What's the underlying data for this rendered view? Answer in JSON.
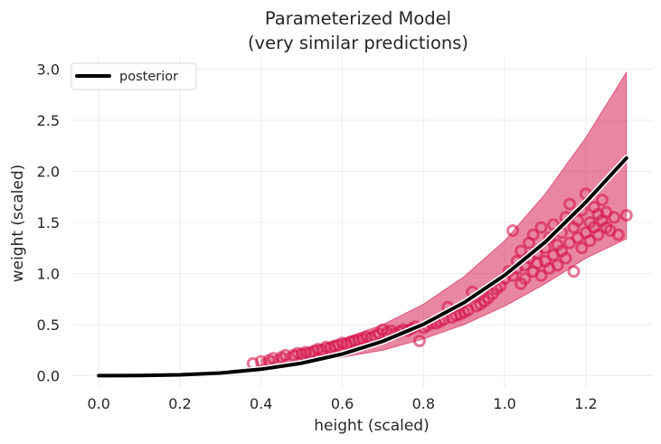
{
  "chart_data": {
    "type": "scatter",
    "title": "Parameterized Model",
    "subtitle": "(very similar predictions)",
    "xlabel": "height (scaled)",
    "ylabel": "weight (scaled)",
    "xlim": [
      -0.065,
      1.365
    ],
    "ylim": [
      -0.12,
      3.12
    ],
    "xticks": [
      0.0,
      0.2,
      0.4,
      0.6,
      0.8,
      1.0,
      1.2
    ],
    "xtick_labels": [
      "0.0",
      "0.2",
      "0.4",
      "0.6",
      "0.8",
      "1.0",
      "1.2"
    ],
    "yticks": [
      0.0,
      0.5,
      1.0,
      1.5,
      2.0,
      2.5,
      3.0
    ],
    "ytick_labels": [
      "0.0",
      "0.5",
      "1.0",
      "1.5",
      "2.0",
      "2.5",
      "3.0"
    ],
    "grid": true,
    "legend": {
      "placement": "top-left",
      "entries": [
        {
          "label": "posterior",
          "color": "#000000"
        }
      ]
    },
    "colors": {
      "band": "#d5184c",
      "band_opacity": 0.52,
      "points": "#d5184c",
      "line": "#000000"
    },
    "series": [
      {
        "name": "posterior",
        "kind": "line",
        "x": [
          0.0,
          0.1,
          0.2,
          0.3,
          0.4,
          0.5,
          0.6,
          0.7,
          0.8,
          0.9,
          1.0,
          1.1,
          1.2,
          1.3
        ],
        "y": [
          0.0,
          0.001,
          0.008,
          0.026,
          0.063,
          0.123,
          0.212,
          0.337,
          0.503,
          0.716,
          0.983,
          1.308,
          1.698,
          2.13
        ]
      },
      {
        "kind": "band",
        "x": [
          0.4,
          0.5,
          0.6,
          0.7,
          0.8,
          0.9,
          1.0,
          1.1,
          1.2,
          1.3
        ],
        "upper": [
          0.16,
          0.26,
          0.36,
          0.5,
          0.7,
          0.97,
          1.32,
          1.78,
          2.33,
          2.97
        ],
        "lower": [
          0.09,
          0.12,
          0.18,
          0.25,
          0.36,
          0.5,
          0.68,
          0.9,
          1.15,
          1.34
        ]
      },
      {
        "kind": "scatter",
        "points": [
          [
            0.38,
            0.12
          ],
          [
            0.4,
            0.14
          ],
          [
            0.42,
            0.15
          ],
          [
            0.43,
            0.17
          ],
          [
            0.45,
            0.18
          ],
          [
            0.46,
            0.2
          ],
          [
            0.48,
            0.2
          ],
          [
            0.49,
            0.22
          ],
          [
            0.5,
            0.21
          ],
          [
            0.51,
            0.23
          ],
          [
            0.52,
            0.22
          ],
          [
            0.53,
            0.24
          ],
          [
            0.54,
            0.26
          ],
          [
            0.55,
            0.25
          ],
          [
            0.56,
            0.28
          ],
          [
            0.57,
            0.27
          ],
          [
            0.58,
            0.29
          ],
          [
            0.59,
            0.3
          ],
          [
            0.6,
            0.32
          ],
          [
            0.61,
            0.31
          ],
          [
            0.62,
            0.33
          ],
          [
            0.63,
            0.34
          ],
          [
            0.64,
            0.35
          ],
          [
            0.65,
            0.36
          ],
          [
            0.66,
            0.38
          ],
          [
            0.67,
            0.37
          ],
          [
            0.68,
            0.39
          ],
          [
            0.69,
            0.41
          ],
          [
            0.7,
            0.45
          ],
          [
            0.71,
            0.42
          ],
          [
            0.72,
            0.44
          ],
          [
            0.73,
            0.41
          ],
          [
            0.74,
            0.43
          ],
          [
            0.75,
            0.45
          ],
          [
            0.76,
            0.44
          ],
          [
            0.77,
            0.46
          ],
          [
            0.78,
            0.48
          ],
          [
            0.79,
            0.34
          ],
          [
            0.8,
            0.47
          ],
          [
            0.81,
            0.49
          ],
          [
            0.82,
            0.52
          ],
          [
            0.83,
            0.51
          ],
          [
            0.84,
            0.53
          ],
          [
            0.85,
            0.55
          ],
          [
            0.86,
            0.67
          ],
          [
            0.87,
            0.57
          ],
          [
            0.88,
            0.59
          ],
          [
            0.89,
            0.6
          ],
          [
            0.9,
            0.62
          ],
          [
            0.91,
            0.64
          ],
          [
            0.92,
            0.82
          ],
          [
            0.93,
            0.68
          ],
          [
            0.94,
            0.7
          ],
          [
            0.95,
            0.73
          ],
          [
            0.96,
            0.76
          ],
          [
            0.97,
            0.8
          ],
          [
            0.98,
            0.85
          ],
          [
            0.99,
            0.88
          ],
          [
            1.0,
            0.95
          ],
          [
            1.01,
            1.02
          ],
          [
            1.02,
            1.42
          ],
          [
            1.02,
            0.98
          ],
          [
            1.03,
            1.05
          ],
          [
            1.03,
            1.12
          ],
          [
            1.04,
            0.9
          ],
          [
            1.04,
            1.22
          ],
          [
            1.05,
            1.08
          ],
          [
            1.05,
            0.95
          ],
          [
            1.06,
            1.3
          ],
          [
            1.06,
            1.15
          ],
          [
            1.07,
            1.02
          ],
          [
            1.07,
            1.38
          ],
          [
            1.08,
            1.2
          ],
          [
            1.08,
            1.1
          ],
          [
            1.09,
            1.45
          ],
          [
            1.09,
            0.98
          ],
          [
            1.1,
            1.25
          ],
          [
            1.1,
            1.12
          ],
          [
            1.11,
            1.35
          ],
          [
            1.11,
            1.05
          ],
          [
            1.12,
            1.48
          ],
          [
            1.12,
            1.18
          ],
          [
            1.13,
            1.28
          ],
          [
            1.13,
            1.08
          ],
          [
            1.14,
            1.4
          ],
          [
            1.14,
            1.22
          ],
          [
            1.15,
            1.55
          ],
          [
            1.15,
            1.15
          ],
          [
            1.16,
            1.68
          ],
          [
            1.16,
            1.3
          ],
          [
            1.17,
            1.45
          ],
          [
            1.17,
            1.02
          ],
          [
            1.18,
            1.35
          ],
          [
            1.18,
            1.52
          ],
          [
            1.19,
            1.25
          ],
          [
            1.19,
            1.62
          ],
          [
            1.2,
            1.78
          ],
          [
            1.2,
            1.4
          ],
          [
            1.21,
            1.5
          ],
          [
            1.21,
            1.32
          ],
          [
            1.22,
            1.65
          ],
          [
            1.22,
            1.45
          ],
          [
            1.23,
            1.58
          ],
          [
            1.23,
            1.38
          ],
          [
            1.24,
            1.72
          ],
          [
            1.24,
            1.52
          ],
          [
            1.25,
            1.45
          ],
          [
            1.25,
            1.6
          ],
          [
            1.26,
            1.42
          ],
          [
            1.27,
            1.55
          ],
          [
            1.28,
            1.38
          ],
          [
            1.3,
            1.57
          ]
        ]
      }
    ]
  }
}
